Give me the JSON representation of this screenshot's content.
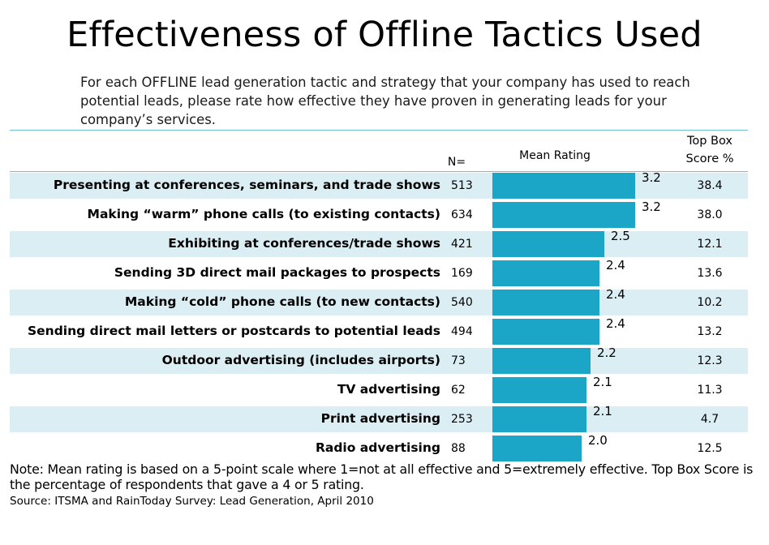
{
  "title": "Effectiveness of Offline Tactics Used",
  "subtitle": "For each OFFLINE lead generation tactic and strategy that your company has used to reach potential leads, please rate how effective they have proven in generating leads for your company’s services.",
  "headers": {
    "n": "N=",
    "mean": "Mean Rating",
    "top_box_line1": "Top Box",
    "top_box_line2": "Score %"
  },
  "note": "Note: Mean rating is based on a 5-point scale where 1=not at all effective and 5=extremely effective. Top Box Score is the percentage of respondents that gave a 4 or 5 rating.",
  "source": "Source: ITSMA and RainToday Survey: Lead Generation, April 2010",
  "colors": {
    "bar": "#1ba6c7",
    "stripe": "#dbeef4",
    "rule": "#6fbfd6"
  },
  "chart_data": {
    "type": "bar",
    "orientation": "horizontal",
    "title": "Effectiveness of Offline Tactics Used",
    "categories": [
      "Presenting at conferences, seminars, and trade shows",
      "Making “warm” phone calls (to existing contacts)",
      "Exhibiting at conferences/trade shows",
      "Sending 3D direct mail packages to prospects",
      "Making “cold” phone calls (to new contacts)",
      "Sending direct mail letters or postcards to potential leads",
      "Outdoor advertising (includes airports)",
      "TV advertising",
      "Print advertising",
      "Radio advertising"
    ],
    "n": [
      "513",
      "634",
      "421",
      "169",
      "540",
      "494",
      "73",
      "62",
      "253",
      "88"
    ],
    "mean_labels": [
      "3.2",
      "3.2",
      "2.5",
      "2.4",
      "2.4",
      "2.4",
      "2.2",
      "2.1",
      "2.1",
      "2.0"
    ],
    "values": [
      3.2,
      3.2,
      2.5,
      2.4,
      2.4,
      2.4,
      2.2,
      2.1,
      2.1,
      2.0
    ],
    "top_box": [
      "38.4",
      "38.0",
      "12.1",
      "13.6",
      "10.2",
      "13.2",
      "12.3",
      "11.3",
      "4.7",
      "12.5"
    ],
    "xlabel": "",
    "ylabel": "",
    "grid": false,
    "legend": "none"
  }
}
